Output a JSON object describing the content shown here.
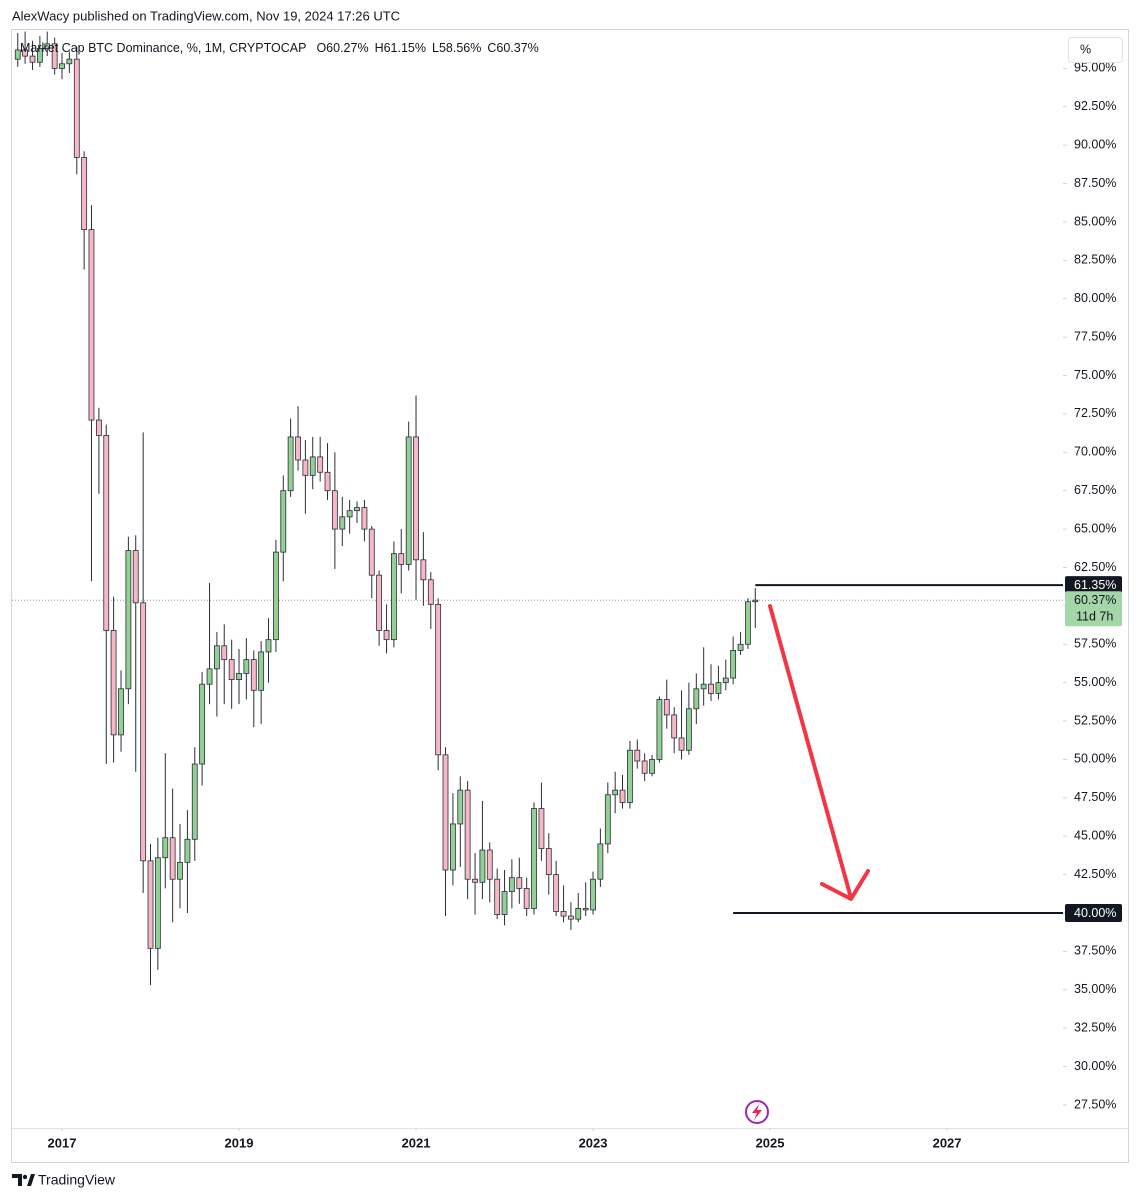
{
  "header": {
    "published": "AlexWacy published on TradingView.com, Nov 19, 2024 17:26 UTC"
  },
  "footer": {
    "brand": "TradingView"
  },
  "chart_data": {
    "type": "candlestick",
    "title": "Market Cap BTC Dominance, %, 1M, CRYPTOCAP",
    "ohlc_legend": [
      "O60.27%",
      "H61.15%",
      "L58.56%",
      "C60.37%"
    ],
    "scale_button": "%",
    "up_color": "#93d094",
    "down_color": "#f5b8c4",
    "outline_color": "#2a2e39",
    "grid": false,
    "xlim": [
      2016.435,
      2028.31
    ],
    "xticks": [
      2017,
      2019,
      2021,
      2023,
      2025,
      2027
    ],
    "ylim": [
      26.0,
      97.5
    ],
    "yticks": [
      {
        "value": 95,
        "label": "95.00%"
      },
      {
        "value": 92.5,
        "label": "92.50%"
      },
      {
        "value": 90,
        "label": "90.00%"
      },
      {
        "value": 87.5,
        "label": "87.50%"
      },
      {
        "value": 85,
        "label": "85.00%"
      },
      {
        "value": 82.5,
        "label": "82.50%"
      },
      {
        "value": 80,
        "label": "80.00%"
      },
      {
        "value": 77.5,
        "label": "77.50%"
      },
      {
        "value": 75,
        "label": "75.00%"
      },
      {
        "value": 72.5,
        "label": "72.50%"
      },
      {
        "value": 70,
        "label": "70.00%"
      },
      {
        "value": 67.5,
        "label": "67.50%"
      },
      {
        "value": 65,
        "label": "65.00%"
      },
      {
        "value": 62.5,
        "label": "62.50%"
      },
      {
        "value": 60,
        "label": "60.00%"
      },
      {
        "value": 57.5,
        "label": "57.50%"
      },
      {
        "value": 55,
        "label": "55.00%"
      },
      {
        "value": 52.5,
        "label": "52.50%"
      },
      {
        "value": 50,
        "label": "50.00%"
      },
      {
        "value": 47.5,
        "label": "47.50%"
      },
      {
        "value": 45,
        "label": "45.00%"
      },
      {
        "value": 42.5,
        "label": "42.50%"
      },
      {
        "value": 40,
        "label": "40.00%"
      },
      {
        "value": 37.5,
        "label": "37.50%"
      },
      {
        "value": 35,
        "label": "35.00%"
      },
      {
        "value": 32.5,
        "label": "32.50%"
      },
      {
        "value": 30,
        "label": "30.00%"
      },
      {
        "value": 27.5,
        "label": "27.50%"
      }
    ],
    "x": [
      2016.5,
      2016.583,
      2016.667,
      2016.75,
      2016.833,
      2016.917,
      2017,
      2017.083,
      2017.167,
      2017.25,
      2017.333,
      2017.417,
      2017.5,
      2017.583,
      2017.667,
      2017.75,
      2017.833,
      2017.917,
      2018,
      2018.083,
      2018.167,
      2018.25,
      2018.333,
      2018.417,
      2018.5,
      2018.583,
      2018.667,
      2018.75,
      2018.833,
      2018.917,
      2019,
      2019.083,
      2019.167,
      2019.25,
      2019.333,
      2019.417,
      2019.5,
      2019.583,
      2019.667,
      2019.75,
      2019.833,
      2019.917,
      2020,
      2020.083,
      2020.167,
      2020.25,
      2020.333,
      2020.417,
      2020.5,
      2020.583,
      2020.667,
      2020.75,
      2020.833,
      2020.917,
      2021,
      2021.083,
      2021.167,
      2021.25,
      2021.333,
      2021.417,
      2021.5,
      2021.583,
      2021.667,
      2021.75,
      2021.833,
      2021.917,
      2022,
      2022.083,
      2022.167,
      2022.25,
      2022.333,
      2022.417,
      2022.5,
      2022.583,
      2022.667,
      2022.75,
      2022.833,
      2022.917,
      2023,
      2023.083,
      2023.167,
      2023.25,
      2023.333,
      2023.417,
      2023.5,
      2023.583,
      2023.667,
      2023.75,
      2023.833,
      2023.917,
      2024,
      2024.083,
      2024.167,
      2024.25,
      2024.333,
      2024.417,
      2024.5,
      2024.583,
      2024.667,
      2024.75,
      2024.833
    ],
    "open": [
      95.6,
      96.2,
      95.8,
      95.4,
      96.3,
      96.6,
      95.0,
      95.3,
      95.6,
      89.2,
      84.5,
      72.1,
      71.1,
      58.4,
      51.6,
      54.6,
      63.6,
      60.2,
      43.4,
      37.7,
      43.6,
      44.9,
      42.2,
      43.3,
      44.8,
      49.7,
      54.9,
      55.9,
      57.4,
      56.5,
      55.2,
      55.6,
      56.5,
      54.5,
      57.0,
      57.8,
      63.5,
      67.5,
      71.0,
      69.5,
      68.5,
      69.7,
      68.7,
      67.5,
      65.0,
      65.8,
      66.2,
      66.4,
      65.0,
      62.0,
      58.4,
      57.8,
      63.4,
      62.7,
      71.0,
      63.0,
      61.7,
      60.1,
      50.3,
      42.8,
      45.8,
      48.0,
      42.2,
      42.0,
      44.1,
      42.2,
      39.9,
      41.4,
      42.3,
      41.6,
      40.3,
      46.8,
      44.2,
      42.5,
      40.1,
      39.8,
      39.6,
      40.3,
      40.2,
      42.2,
      44.5,
      47.7,
      48.0,
      47.2,
      50.6,
      49.9,
      49.1,
      50.0,
      53.9,
      52.9,
      51.4,
      50.6,
      53.3,
      54.6,
      54.9,
      54.3,
      55.0,
      55.3,
      57.1,
      57.5,
      60.27
    ],
    "high": [
      97.3,
      97.4,
      96.8,
      97.1,
      97.4,
      97.0,
      96.0,
      96.1,
      96.4,
      89.6,
      86.1,
      72.9,
      71.8,
      60.6,
      55.8,
      64.5,
      64.6,
      71.3,
      44.5,
      44.9,
      50.4,
      48.1,
      45.8,
      46.7,
      50.8,
      55.7,
      61.5,
      58.3,
      58.8,
      57.8,
      57.2,
      57.9,
      57.1,
      57.7,
      59.2,
      64.3,
      68.5,
      72.2,
      73.0,
      70.8,
      71.0,
      71.0,
      70.6,
      70.0,
      67.1,
      66.9,
      66.8,
      66.9,
      65.2,
      62.3,
      60.1,
      64.2,
      65.0,
      72.0,
      73.7,
      64.8,
      62.2,
      60.5,
      50.8,
      47.8,
      48.9,
      48.6,
      43.9,
      47.3,
      44.6,
      42.9,
      42.8,
      43.5,
      43.6,
      42.3,
      47.2,
      48.5,
      45.2,
      43.4,
      41.8,
      40.7,
      41.3,
      42.0,
      42.7,
      45.5,
      48.5,
      49.2,
      49.0,
      51.2,
      51.3,
      50.4,
      50.3,
      54.1,
      55.2,
      53.4,
      54.5,
      55.0,
      55.6,
      57.3,
      56.2,
      56.1,
      56.5,
      58.0,
      58.3,
      60.5,
      61.15
    ],
    "low": [
      95.1,
      95.3,
      94.9,
      95.1,
      95.8,
      94.6,
      94.3,
      94.7,
      88.1,
      81.9,
      61.6,
      67.3,
      49.7,
      49.8,
      50.5,
      53.6,
      49.2,
      41.3,
      35.3,
      36.3,
      41.6,
      39.4,
      40.3,
      40.0,
      43.4,
      48.3,
      53.6,
      52.8,
      53.6,
      53.3,
      53.6,
      53.9,
      52.1,
      52.3,
      55.0,
      57.0,
      61.6,
      67.1,
      68.8,
      66.0,
      67.6,
      68.1,
      66.9,
      62.4,
      63.9,
      64.7,
      65.4,
      64.2,
      60.5,
      57.4,
      56.9,
      57.3,
      60.8,
      62.3,
      60.4,
      60.0,
      58.5,
      49.3,
      39.8,
      41.8,
      43.0,
      40.9,
      39.9,
      40.9,
      40.7,
      39.6,
      39.2,
      40.3,
      40.6,
      39.8,
      39.9,
      43.4,
      41.2,
      39.8,
      39.4,
      38.9,
      39.4,
      39.8,
      39.9,
      41.7,
      43.9,
      46.5,
      46.8,
      46.8,
      49.4,
      48.6,
      48.9,
      49.8,
      52.0,
      50.4,
      50.0,
      50.3,
      52.3,
      53.5,
      53.8,
      53.9,
      54.5,
      54.9,
      56.8,
      57.2,
      58.56
    ],
    "close": [
      96.2,
      95.8,
      95.4,
      96.3,
      96.6,
      95.0,
      95.3,
      95.6,
      89.2,
      84.5,
      72.1,
      71.1,
      58.4,
      51.6,
      54.6,
      63.6,
      60.2,
      43.4,
      37.7,
      43.6,
      44.9,
      42.2,
      43.3,
      44.8,
      49.7,
      54.9,
      55.9,
      57.4,
      56.5,
      55.2,
      55.6,
      56.5,
      54.5,
      57.0,
      57.8,
      63.5,
      67.5,
      71.0,
      69.5,
      68.5,
      69.7,
      68.7,
      67.5,
      65.0,
      65.8,
      66.2,
      66.4,
      65.0,
      62.0,
      58.4,
      57.8,
      63.4,
      62.7,
      71.0,
      63.0,
      61.7,
      60.1,
      50.3,
      42.8,
      45.8,
      48.0,
      42.2,
      42.0,
      44.1,
      42.2,
      39.9,
      41.4,
      42.3,
      41.6,
      40.3,
      46.8,
      44.2,
      42.5,
      40.1,
      39.8,
      39.6,
      40.3,
      40.2,
      42.2,
      44.5,
      47.7,
      48.0,
      47.2,
      50.6,
      49.9,
      49.1,
      50.0,
      53.9,
      52.9,
      51.4,
      50.6,
      53.3,
      54.6,
      54.9,
      54.3,
      55.0,
      55.3,
      57.1,
      57.5,
      60.27,
      60.37
    ],
    "levels": [
      {
        "value": 61.35,
        "label": "61.35%",
        "x": 2024.833
      },
      {
        "value": 40,
        "label": "40.00%",
        "x": 2024.583
      }
    ],
    "last_price": {
      "value": 60.37,
      "label": "60.37%",
      "countdown": "11d 7h",
      "color": "#a5d6a7"
    }
  }
}
